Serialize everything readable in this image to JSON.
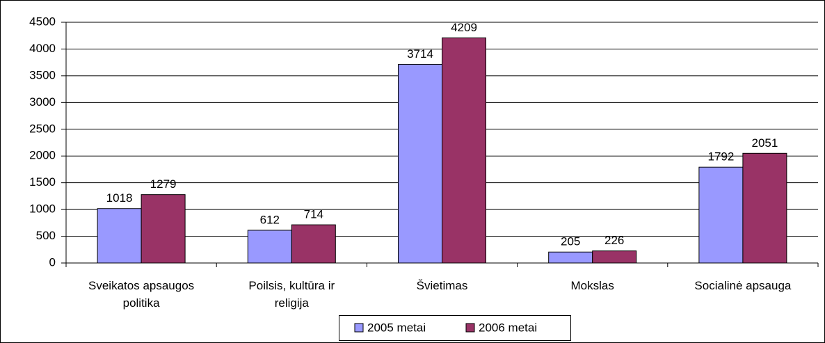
{
  "chart_data": {
    "type": "bar",
    "categories": [
      "Sveikatos apsaugos politika",
      "Poilsis, kultūra ir religija",
      "Švietimas",
      "Mokslas",
      "Socialinė apsauga"
    ],
    "series": [
      {
        "name": "2005 metai",
        "color": "#9999ff",
        "values": [
          1018,
          612,
          3714,
          205,
          1792
        ]
      },
      {
        "name": "2006 metai",
        "color": "#993366",
        "values": [
          1279,
          714,
          4209,
          226,
          2051
        ]
      }
    ],
    "ylim": [
      0,
      4500
    ],
    "yticks": [
      0,
      500,
      1000,
      1500,
      2000,
      2500,
      3000,
      3500,
      4000,
      4500
    ],
    "grid": true,
    "legend": "bottom"
  }
}
